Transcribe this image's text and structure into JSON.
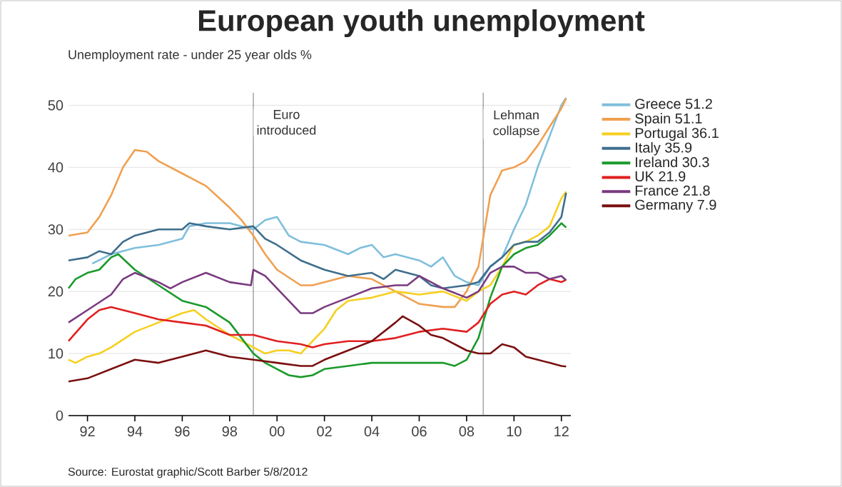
{
  "chart_data": {
    "type": "line",
    "title": "European youth unemployment",
    "subtitle": "Unemployment rate - under 25 year olds %",
    "xlim": [
      1991.2,
      2012.4
    ],
    "ylim": [
      0,
      52
    ],
    "xticks": [
      {
        "value": 1992,
        "label": "92"
      },
      {
        "value": 1994,
        "label": "94"
      },
      {
        "value": 1996,
        "label": "96"
      },
      {
        "value": 1998,
        "label": "98"
      },
      {
        "value": 2000,
        "label": "00"
      },
      {
        "value": 2002,
        "label": "02"
      },
      {
        "value": 2004,
        "label": "04"
      },
      {
        "value": 2006,
        "label": "06"
      },
      {
        "value": 2008,
        "label": "08"
      },
      {
        "value": 2010,
        "label": "10"
      },
      {
        "value": 2012,
        "label": "12"
      }
    ],
    "yticks": [
      0,
      10,
      20,
      30,
      40,
      50
    ],
    "grid": "y",
    "legend": "right",
    "marker": "none",
    "line_style": "solid",
    "ref_lines": [
      {
        "axis": "x",
        "value": 1999.0,
        "label": "Euro introduced",
        "color": "#555555"
      },
      {
        "axis": "x",
        "value": 2008.7,
        "label": "Lehman collapse",
        "color": "#555555"
      }
    ],
    "annotations": [
      "Source: Eurostat graphic/Scott Barber 5/8/2012"
    ],
    "series": [
      {
        "name": "Greece 51.2",
        "color": "#7fbfdc",
        "x": [
          1992.2,
          1993,
          1994,
          1995,
          1996,
          1996.3,
          1997,
          1998,
          1999,
          1999.5,
          2000,
          2000.5,
          2001,
          2002,
          2003,
          2003.5,
          2004,
          2004.5,
          2005,
          2006,
          2006.5,
          2007,
          2007.5,
          2008,
          2008.5,
          2009,
          2009.5,
          2010,
          2010.5,
          2011,
          2011.5,
          2012,
          2012.2
        ],
        "values": [
          24.5,
          26,
          27,
          27.5,
          28.5,
          30.5,
          31,
          31,
          30,
          31.5,
          32,
          29,
          28,
          27.5,
          26,
          27,
          27.5,
          25.5,
          26,
          25,
          24,
          25.5,
          22.5,
          21.5,
          21,
          24,
          25.5,
          30,
          34,
          40,
          45,
          50,
          51.2
        ]
      },
      {
        "name": "Spain 51.1",
        "color": "#f0a050",
        "x": [
          1991.2,
          1992,
          1992.5,
          1993,
          1993.5,
          1994,
          1994.5,
          1995,
          1996,
          1996.5,
          1997,
          1998,
          1998.5,
          1999,
          1999.5,
          2000,
          2001,
          2001.5,
          2002,
          2003,
          2004,
          2005,
          2006,
          2007,
          2007.5,
          2008,
          2008.5,
          2009,
          2009.5,
          2010,
          2010.5,
          2011,
          2011.5,
          2012,
          2012.2
        ],
        "values": [
          29,
          29.5,
          32,
          35.5,
          40,
          42.8,
          42.5,
          41,
          39,
          38,
          37,
          33.5,
          31.5,
          29,
          26,
          23.5,
          21,
          21,
          21.5,
          22.5,
          22,
          20,
          18,
          17.5,
          17.5,
          20,
          24,
          35.5,
          39.5,
          40,
          41,
          43.5,
          46.5,
          49.5,
          51.1
        ]
      },
      {
        "name": "Portugal 36.1",
        "color": "#f5d020",
        "x": [
          1991.2,
          1991.5,
          1992,
          1992.5,
          1993,
          1994,
          1995,
          1996,
          1996.5,
          1997,
          1998,
          1998.5,
          1999,
          1999.5,
          2000,
          2000.5,
          2001,
          2001.5,
          2002,
          2002.5,
          2003,
          2004,
          2005,
          2006,
          2007,
          2008,
          2008.5,
          2009,
          2009.5,
          2010,
          2010.5,
          2011,
          2011.5,
          2012,
          2012.2
        ],
        "values": [
          9,
          8.5,
          9.5,
          10,
          11,
          13.5,
          15,
          16.5,
          17,
          15.5,
          13,
          12,
          11,
          10,
          10.5,
          10.5,
          10,
          12,
          14,
          17,
          18.5,
          19,
          20,
          19.5,
          20,
          18.5,
          20,
          21,
          24,
          27.5,
          28,
          29,
          30.5,
          35,
          36.1
        ]
      },
      {
        "name": "Italy 35.9",
        "color": "#3f6e8c",
        "x": [
          1991.2,
          1992,
          1992.5,
          1993,
          1993.5,
          1994,
          1995,
          1996,
          1996.3,
          1997,
          1998,
          1999,
          1999.5,
          2000,
          2001,
          2002,
          2003,
          2004,
          2004.5,
          2005,
          2006,
          2006.5,
          2007,
          2008,
          2008.5,
          2009,
          2009.5,
          2010,
          2010.5,
          2011,
          2011.5,
          2012,
          2012.2
        ],
        "values": [
          25,
          25.5,
          26.5,
          26,
          28,
          29,
          30,
          30,
          31,
          30.5,
          30,
          30.5,
          28.5,
          27.5,
          25,
          23.5,
          22.5,
          23,
          22,
          23.5,
          22.5,
          21,
          20.5,
          21,
          21.5,
          24,
          25.5,
          27.5,
          28,
          28,
          29.5,
          32,
          35.9
        ]
      },
      {
        "name": "Ireland 30.3",
        "color": "#1a9a2a",
        "x": [
          1991.2,
          1991.5,
          1992,
          1992.5,
          1993,
          1993.3,
          1994,
          1995,
          1996,
          1997,
          1998,
          1998.5,
          1999,
          1999.5,
          2000,
          2000.5,
          2001,
          2001.5,
          2002,
          2003,
          2004,
          2005,
          2006,
          2007,
          2007.5,
          2008,
          2008.5,
          2009,
          2009.5,
          2010,
          2010.5,
          2011,
          2011.5,
          2012,
          2012.2
        ],
        "values": [
          20.5,
          22,
          23,
          23.5,
          25.5,
          26,
          23.5,
          21,
          18.5,
          17.5,
          15,
          12.5,
          10,
          8.5,
          7.5,
          6.5,
          6.2,
          6.5,
          7.5,
          8,
          8.5,
          8.5,
          8.5,
          8.5,
          8,
          9,
          12.5,
          19,
          24,
          26,
          27,
          27.5,
          29,
          31,
          30.3
        ]
      },
      {
        "name": "UK 21.9",
        "color": "#e02020",
        "x": [
          1991.2,
          1992,
          1992.5,
          1993,
          1994,
          1995,
          1996,
          1997,
          1998,
          1999,
          2000,
          2001,
          2001.5,
          2002,
          2003,
          2004,
          2005,
          2006,
          2007,
          2008,
          2008.5,
          2009,
          2009.5,
          2010,
          2010.5,
          2011,
          2011.5,
          2012,
          2012.2
        ],
        "values": [
          12,
          15.5,
          17,
          17.5,
          16.5,
          15.5,
          15,
          14.5,
          13,
          13,
          12,
          11.5,
          11,
          11.5,
          12,
          12,
          12.5,
          13.5,
          14,
          13.5,
          15,
          18,
          19.5,
          20,
          19.5,
          21,
          22,
          21.5,
          21.9
        ]
      },
      {
        "name": "France 21.8",
        "color": "#7a3a80",
        "x": [
          1991.2,
          1992,
          1993,
          1993.5,
          1994,
          1995,
          1995.5,
          1996,
          1997,
          1998,
          1998.9,
          1999,
          1999.5,
          2000,
          2001,
          2001.5,
          2002,
          2003,
          2004,
          2005,
          2005.5,
          2006,
          2007,
          2008,
          2008.5,
          2009,
          2009.5,
          2010,
          2010.5,
          2011,
          2011.5,
          2012,
          2012.2
        ],
        "values": [
          15,
          17,
          19.5,
          22,
          23,
          21.5,
          20.5,
          21.5,
          23,
          21.5,
          21,
          23.5,
          22.5,
          20.5,
          16.5,
          16.5,
          17.5,
          19,
          20.5,
          21,
          21,
          22.5,
          20.5,
          19,
          20,
          23,
          24,
          24,
          23,
          23,
          22,
          22.5,
          21.8
        ]
      },
      {
        "name": "Germany 7.9",
        "color": "#7a1010",
        "x": [
          1991.2,
          1992,
          1993,
          1994,
          1995,
          1996,
          1997,
          1997.5,
          1998,
          1999,
          2000,
          2001,
          2001.5,
          2002,
          2003,
          2004,
          2005,
          2005.3,
          2006,
          2006.5,
          2007,
          2008,
          2008.5,
          2009,
          2009.5,
          2010,
          2010.5,
          2011,
          2011.5,
          2012,
          2012.2
        ],
        "values": [
          5.5,
          6,
          7.5,
          9,
          8.5,
          9.5,
          10.5,
          10,
          9.5,
          9,
          8.5,
          8,
          8,
          9,
          10.5,
          12,
          15,
          16,
          14.5,
          13,
          12.5,
          10.5,
          10,
          10,
          11.5,
          11,
          9.5,
          9,
          8.5,
          8,
          7.9
        ]
      }
    ]
  }
}
